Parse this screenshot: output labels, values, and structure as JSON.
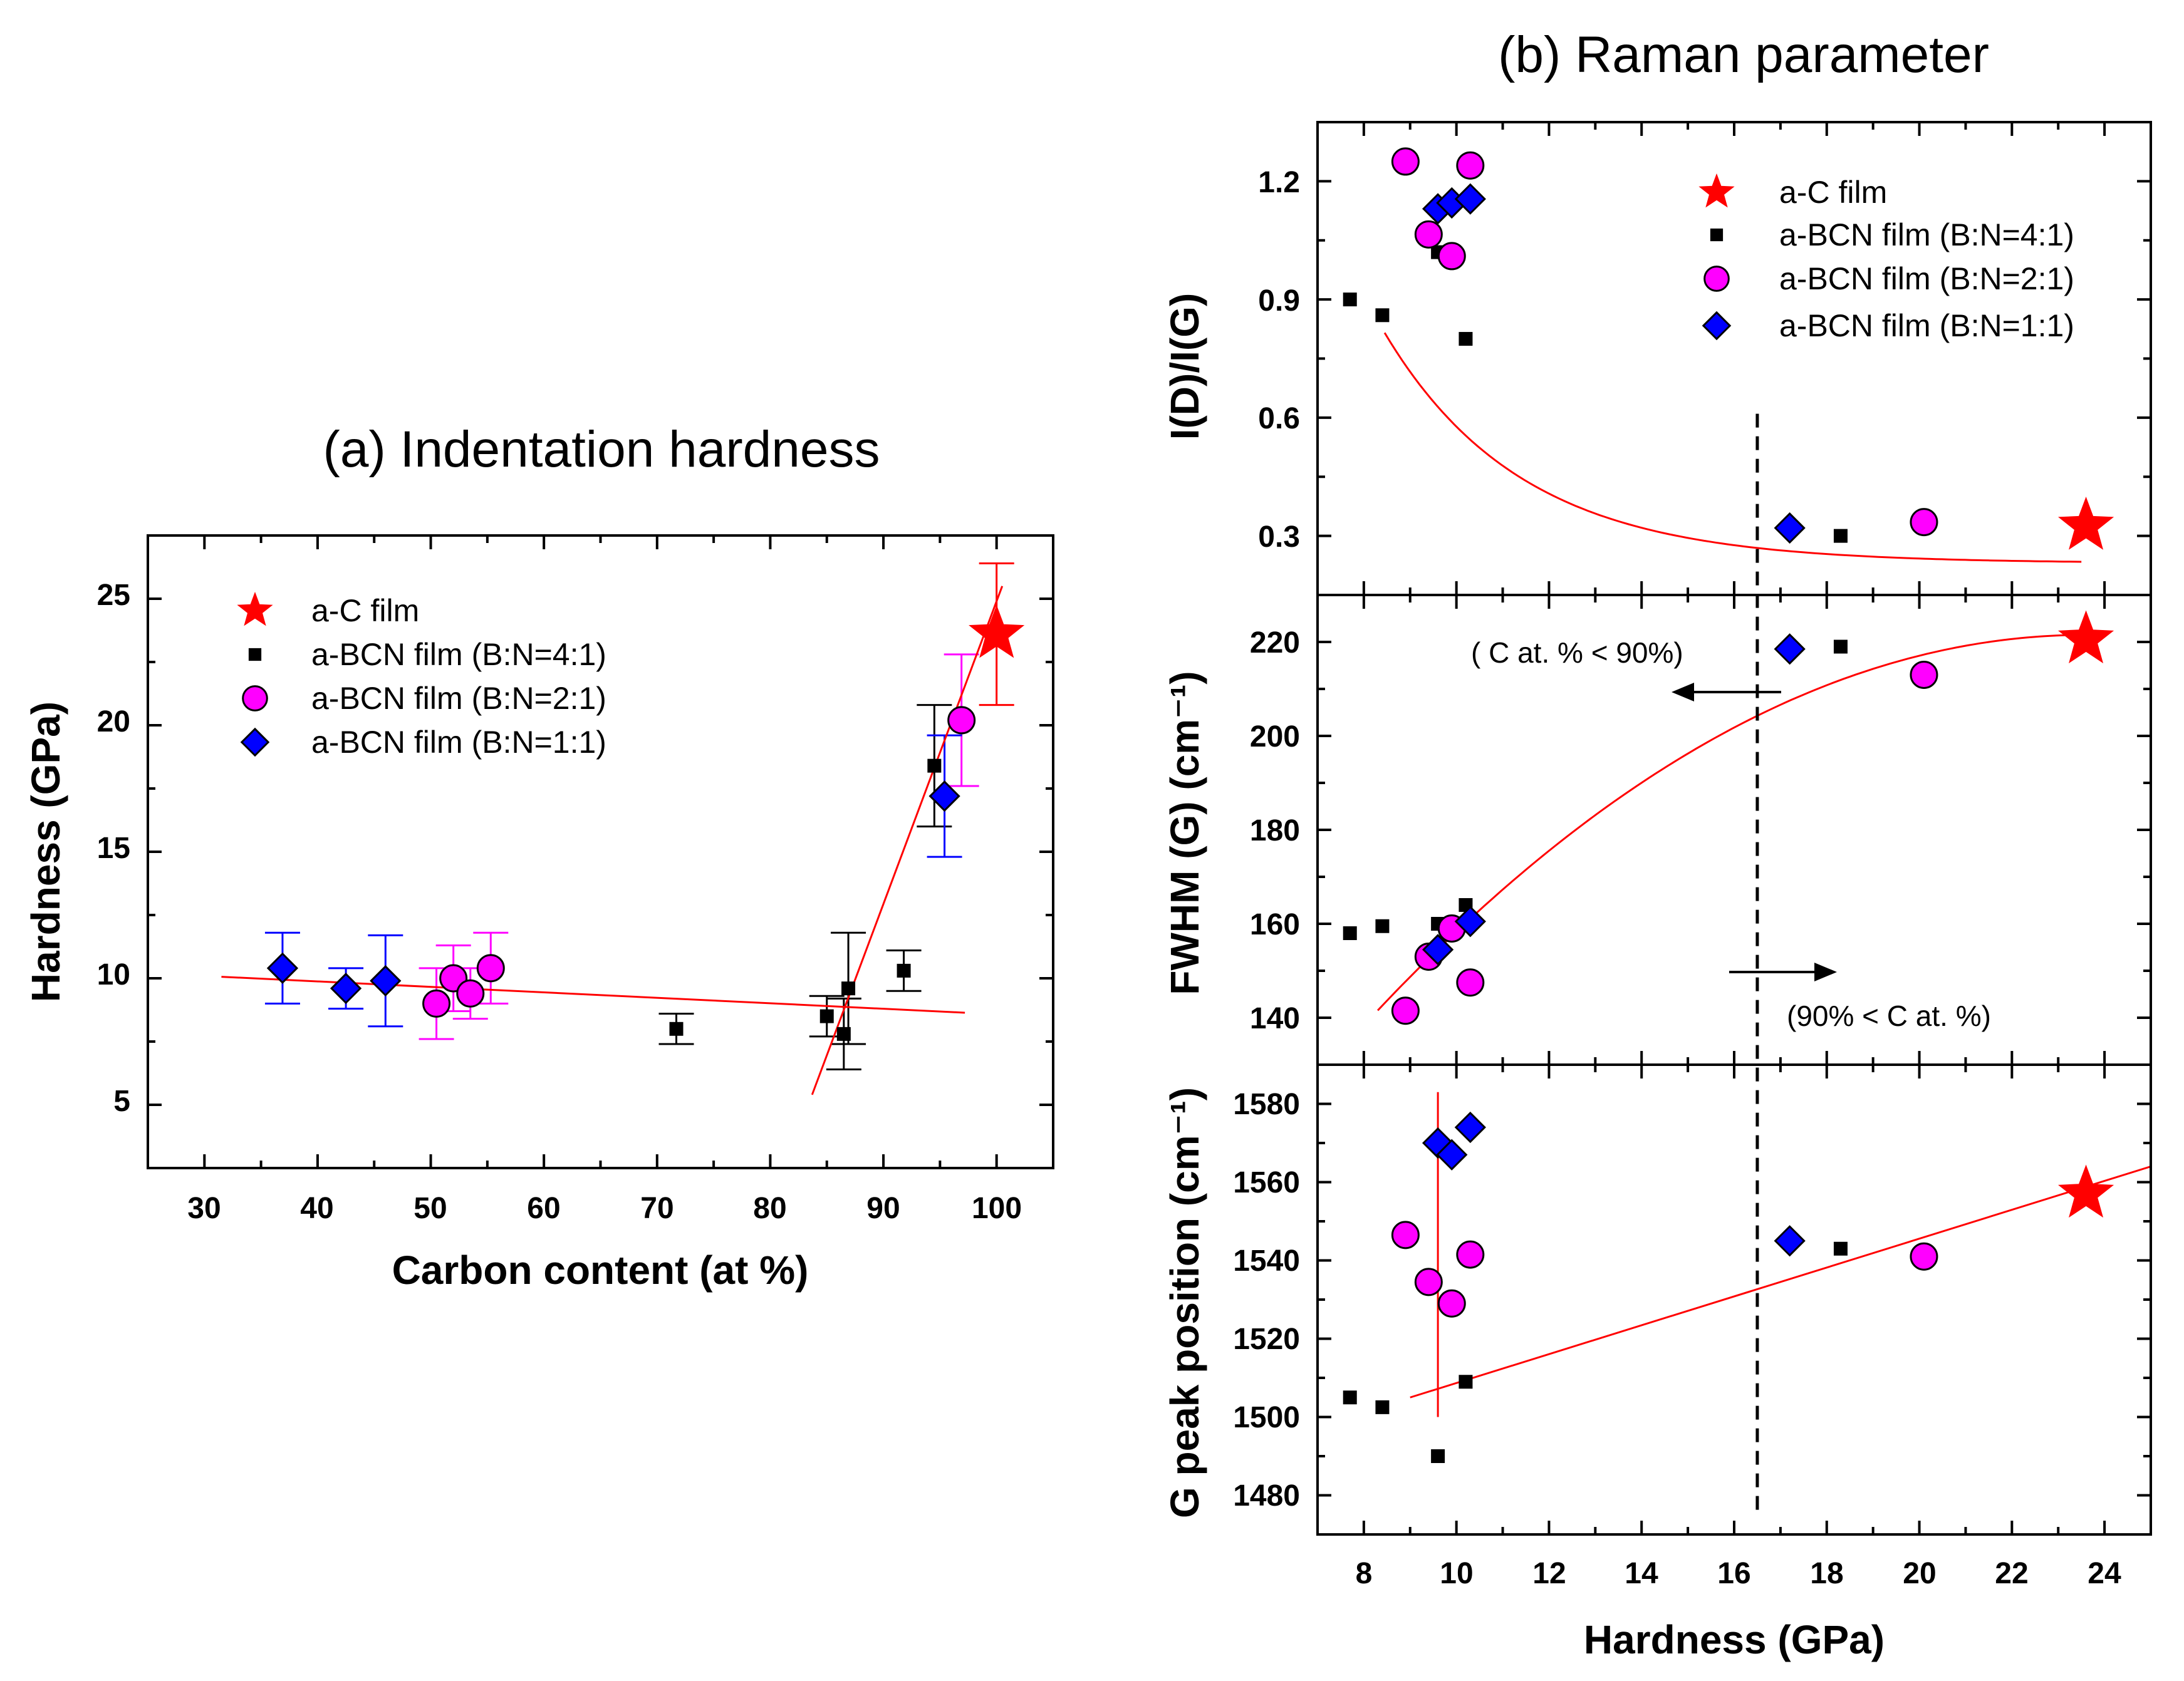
{
  "colors": {
    "fit_line": "#ff0000",
    "ac_film": "#ff0000",
    "bcn_4_1": "#000000",
    "bcn_2_1": "#ff00ff",
    "bcn_1_1": "#0000ff",
    "errbar_black": "#000000",
    "errbar_magenta": "#ff00ff",
    "errbar_blue": "#0000ff"
  },
  "legend": {
    "ac": "a-C film",
    "b41": "a-BCN film (B:N=4:1)",
    "b21": "a-BCN film (B:N=2:1)",
    "b11": "a-BCN film (B:N=1:1)"
  },
  "annotations": {
    "left": "( C at. % < 90%)",
    "right": "(90% < C at. %)",
    "boundary_x": 16.5
  },
  "chart_data": [
    {
      "id": "a",
      "type": "scatter",
      "title": "(a) Indentation hardness",
      "xlabel": "Carbon content (at %)",
      "ylabel": "Hardness (GPa)",
      "xlim": [
        25,
        105
      ],
      "ylim": [
        2.5,
        27.5
      ],
      "xticks": [
        "30",
        "40",
        "50",
        "60",
        "70",
        "80",
        "90",
        "100"
      ],
      "yticks": [
        "5",
        "10",
        "15",
        "20",
        "25"
      ],
      "series": [
        {
          "name": "a-C film",
          "marker": "star",
          "points": [
            [
              100,
              23.6,
              2.8
            ]
          ]
        },
        {
          "name": "a-BCN film (B:N=4:1)",
          "marker": "square",
          "points": [
            [
              71.7,
              8.0,
              0.6
            ],
            [
              85.0,
              8.5,
              0.8
            ],
            [
              86.5,
              7.8,
              1.4
            ],
            [
              86.9,
              9.6,
              2.2
            ],
            [
              91.8,
              10.3,
              0.8
            ],
            [
              94.5,
              18.4,
              2.4
            ]
          ]
        },
        {
          "name": "a-BCN film (B:N=2:1)",
          "marker": "circle",
          "points": [
            [
              50.5,
              9.0,
              1.4
            ],
            [
              52.0,
              10.0,
              1.3
            ],
            [
              53.5,
              9.4,
              1.0
            ],
            [
              55.3,
              10.4,
              1.4
            ],
            [
              96.9,
              20.2,
              2.6
            ]
          ]
        },
        {
          "name": "a-BCN film (B:N=1:1)",
          "marker": "diamond",
          "points": [
            [
              36.9,
              10.4,
              1.4
            ],
            [
              42.5,
              9.6,
              0.8
            ],
            [
              46.0,
              9.9,
              1.8
            ],
            [
              95.4,
              17.2,
              2.4
            ]
          ]
        }
      ],
      "fits": [
        {
          "x": [
            31.5,
            97.2
          ],
          "y": [
            10.06,
            8.64
          ]
        },
        {
          "x": [
            83.7,
            100.5
          ],
          "y": [
            5.4,
            25.5
          ]
        }
      ]
    },
    {
      "id": "b1",
      "type": "scatter",
      "title": "(b) Raman parameter",
      "xlabel": "",
      "ylabel": "I(D)/I(G)",
      "xlim": [
        7,
        25
      ],
      "ylim": [
        0.15,
        1.35
      ],
      "yticks": [
        "0.3",
        "0.6",
        "0.9",
        "1.2"
      ],
      "series": [
        {
          "name": "a-C film",
          "marker": "star",
          "points": [
            [
              23.6,
              0.325
            ]
          ]
        },
        {
          "name": "a-BCN film (B:N=4:1)",
          "marker": "square",
          "points": [
            [
              7.7,
              0.9
            ],
            [
              8.4,
              0.86
            ],
            [
              9.6,
              1.02
            ],
            [
              10.2,
              0.8
            ],
            [
              18.3,
              0.3
            ]
          ]
        },
        {
          "name": "a-BCN film (B:N=2:1)",
          "marker": "circle",
          "points": [
            [
              8.9,
              1.25
            ],
            [
              9.4,
              1.065
            ],
            [
              9.9,
              1.01
            ],
            [
              10.3,
              1.24
            ],
            [
              20.1,
              0.335
            ]
          ]
        },
        {
          "name": "a-BCN film (B:N=1:1)",
          "marker": "diamond",
          "points": [
            [
              9.6,
              1.13
            ],
            [
              9.9,
              1.145
            ],
            [
              10.3,
              1.155
            ],
            [
              17.2,
              0.32
            ]
          ]
        }
      ],
      "fit_curve": {
        "kind": "exp_decay",
        "y0": 0.2306,
        "A": 10.11,
        "t": 2.965,
        "x_from": 8.45,
        "x_to": 23.5
      }
    },
    {
      "id": "b2",
      "type": "scatter",
      "ylabel": "FWHM (G)  (cm⁻¹)",
      "xlim": [
        7,
        25
      ],
      "ylim": [
        130,
        230
      ],
      "yticks": [
        "140",
        "160",
        "180",
        "200",
        "220"
      ],
      "series": [
        {
          "name": "a-C film",
          "marker": "star",
          "points": [
            [
              23.6,
              220.5
            ]
          ]
        },
        {
          "name": "a-BCN film (B:N=4:1)",
          "marker": "square",
          "points": [
            [
              7.7,
              158
            ],
            [
              8.4,
              159.5
            ],
            [
              9.6,
              160
            ],
            [
              10.2,
              164
            ],
            [
              18.3,
              219
            ]
          ]
        },
        {
          "name": "a-BCN film (B:N=2:1)",
          "marker": "circle",
          "points": [
            [
              8.9,
              141.5
            ],
            [
              9.4,
              153
            ],
            [
              9.9,
              159
            ],
            [
              10.3,
              147.5
            ],
            [
              20.1,
              213
            ]
          ]
        },
        {
          "name": "a-BCN film (B:N=1:1)",
          "marker": "diamond",
          "points": [
            [
              9.6,
              154.5
            ],
            [
              10.3,
              160.5
            ],
            [
              17.2,
              218.5
            ]
          ]
        }
      ],
      "fit_curve": {
        "kind": "quadratic",
        "vertex_x": 23.6,
        "vertex_y": 221.5,
        "a": -0.3415,
        "x_from": 8.3,
        "x_to": 23.6
      }
    },
    {
      "id": "b3",
      "type": "scatter",
      "ylabel": "G peak position (cm⁻¹)",
      "xlabel": "Hardness (GPa)",
      "xlim": [
        7,
        25
      ],
      "ylim": [
        1470,
        1590
      ],
      "xticks": [
        "8",
        "10",
        "12",
        "14",
        "16",
        "18",
        "20",
        "22",
        "24"
      ],
      "yticks": [
        "1480",
        "1500",
        "1520",
        "1540",
        "1560",
        "1580"
      ],
      "series": [
        {
          "name": "a-C film",
          "marker": "star",
          "points": [
            [
              23.6,
              1557
            ]
          ]
        },
        {
          "name": "a-BCN film (B:N=4:1)",
          "marker": "square",
          "points": [
            [
              7.7,
              1505
            ],
            [
              8.4,
              1502.5
            ],
            [
              9.6,
              1490
            ],
            [
              10.2,
              1509
            ],
            [
              18.3,
              1543
            ]
          ]
        },
        {
          "name": "a-BCN film (B:N=2:1)",
          "marker": "circle",
          "points": [
            [
              8.9,
              1546.5
            ],
            [
              9.4,
              1534.5
            ],
            [
              9.9,
              1529
            ],
            [
              10.3,
              1541.5
            ],
            [
              20.1,
              1541
            ]
          ]
        },
        {
          "name": "a-BCN film (B:N=1:1)",
          "marker": "diamond",
          "points": [
            [
              9.6,
              1570
            ],
            [
              9.9,
              1567
            ],
            [
              10.3,
              1574
            ],
            [
              17.2,
              1545
            ]
          ]
        }
      ],
      "fits": [
        {
          "x": [
            9.0,
            25.0
          ],
          "y": [
            1505,
            1564
          ]
        },
        {
          "x": [
            9.6,
            9.6
          ],
          "y": [
            1500,
            1583
          ]
        }
      ]
    }
  ]
}
